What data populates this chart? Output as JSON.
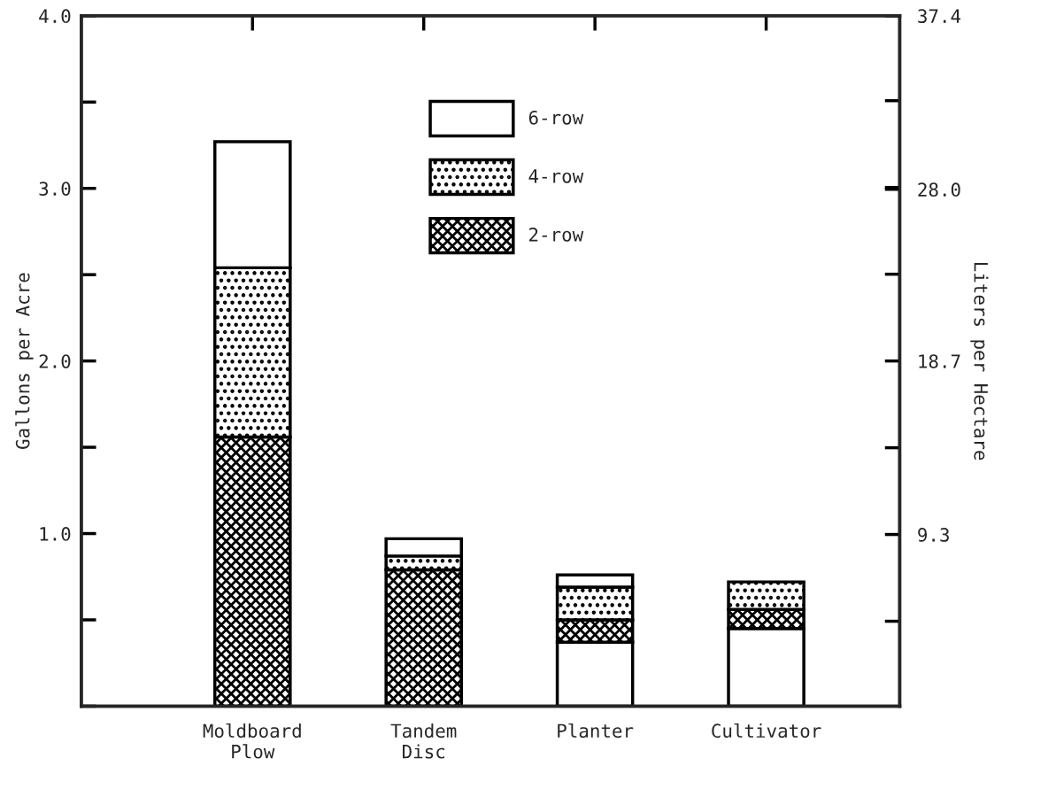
{
  "chart_data": {
    "type": "bar",
    "stacked": true,
    "ylabel": "Gallons per Acre",
    "y2label": "Liters per Hectare",
    "categories": [
      "Moldboard\nPlow",
      "Tandem\nDisc",
      "Planter",
      "Cultivator"
    ],
    "series": [
      {
        "color": "#ffffff",
        "values": [
          0,
          0,
          0.37,
          0.45
        ]
      },
      {
        "name": "2-row",
        "color": "#000000",
        "values": [
          1.56,
          0.79,
          0.13,
          0.11
        ]
      },
      {
        "name": "4-row",
        "color": "#000000",
        "values": [
          0.98,
          0.08,
          0.19,
          0.16
        ]
      },
      {
        "name": "6-row",
        "color": "#ffffff",
        "values": [
          0.73,
          0.1,
          0.07,
          0
        ]
      }
    ],
    "ylim": [
      0,
      4
    ],
    "yticks": [
      {
        "value": 1,
        "label": "1.0"
      },
      {
        "value": 2,
        "label": "2.0"
      },
      {
        "value": 3,
        "label": "3.0"
      },
      {
        "value": 4,
        "label": "4.0"
      }
    ],
    "y2lim": [
      0,
      37.4
    ],
    "y2ticks": [
      9.3,
      18.7,
      {
        "value": 28,
        "label": "28.0"
      },
      37.4
    ],
    "legend": "top",
    "grid": false
  }
}
